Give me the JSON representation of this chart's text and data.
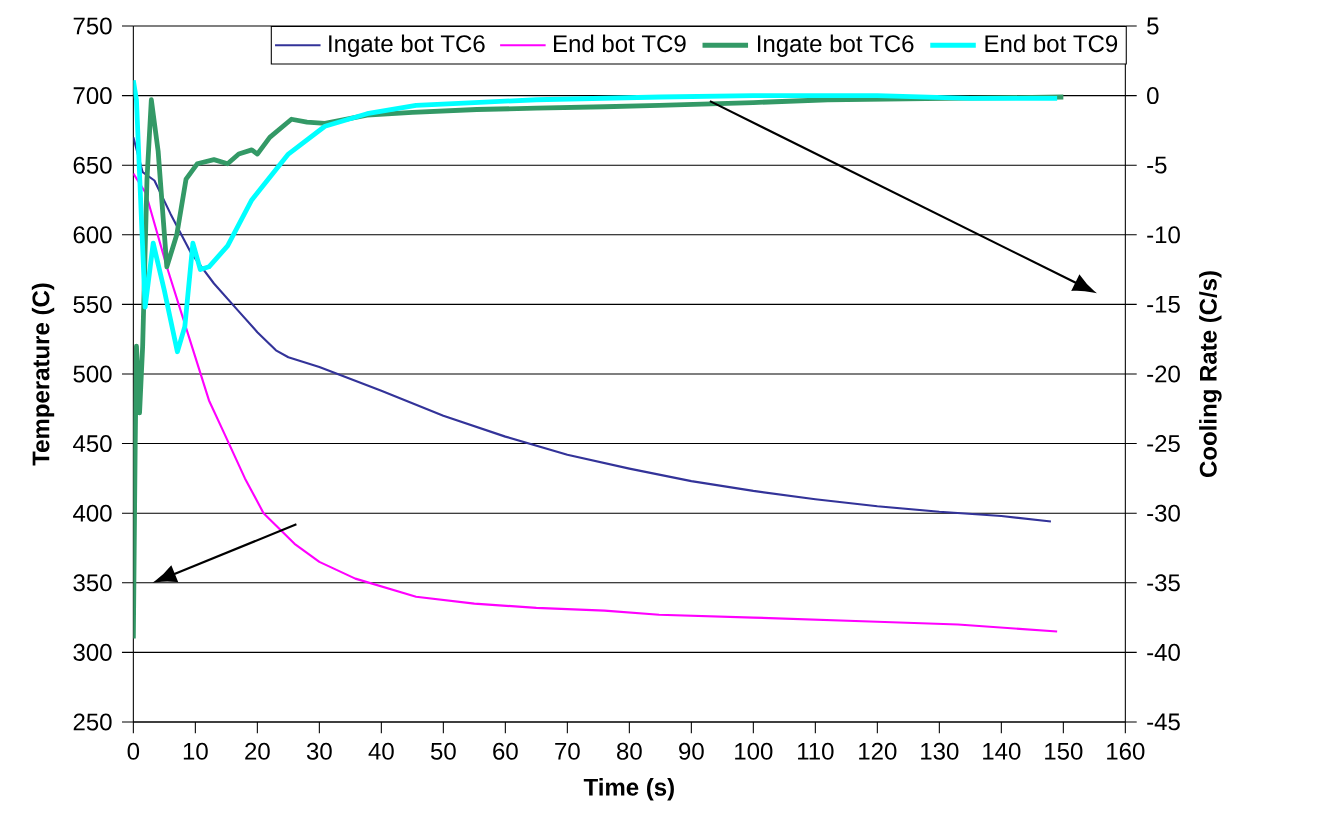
{
  "chart_data": {
    "type": "line",
    "xlabel": "Time (s)",
    "ylabel": "Temperature (C)",
    "y2label": "Cooling Rate (C/s)",
    "xlim": [
      0,
      160
    ],
    "xticks": [
      0,
      10,
      20,
      30,
      40,
      50,
      60,
      70,
      80,
      90,
      100,
      110,
      120,
      130,
      140,
      150,
      160
    ],
    "ylim": [
      250,
      750
    ],
    "yticks": [
      250,
      300,
      350,
      400,
      450,
      500,
      550,
      600,
      650,
      700,
      750
    ],
    "y2lim": [
      -45,
      5
    ],
    "y2ticks": [
      -45,
      -40,
      -35,
      -30,
      -25,
      -20,
      -15,
      -10,
      -5,
      0,
      5
    ],
    "grid": "y",
    "legend": "top",
    "series": [
      {
        "name": "Ingate bot TC6",
        "color": "#333399",
        "x": [
          0,
          1.5,
          3.4,
          6,
          9.3,
          13,
          17,
          20,
          23,
          25,
          30,
          40,
          50,
          60,
          70,
          80,
          90,
          100,
          110,
          120,
          130,
          140,
          148
        ],
        "values": [
          670,
          645,
          639,
          615,
          587,
          565,
          545,
          530,
          517,
          512,
          505,
          488,
          470,
          455,
          442,
          432,
          423,
          416,
          410,
          405,
          401,
          398,
          394
        ]
      },
      {
        "name": "End bot TC9",
        "color": "#ff00ff",
        "x": [
          0,
          2,
          5.4,
          8.8,
          12.2,
          14.7,
          18,
          21,
          26,
          30,
          35.8,
          45.6,
          55,
          65,
          76,
          84.8,
          100,
          120,
          133,
          149
        ],
        "values": [
          644,
          630,
          577,
          529,
          481,
          457,
          425,
          400,
          378,
          365,
          353,
          340,
          335,
          332,
          330,
          327,
          325,
          322,
          320,
          315
        ]
      },
      {
        "name": "Ingate bot TC6",
        "color": "#339966",
        "axis": "y2",
        "x": [
          0,
          0.3,
          0.5,
          1,
          1.5,
          2.2,
          2.9,
          4,
          5.4,
          7,
          8.5,
          10.3,
          13,
          15.2,
          17,
          19.1,
          20,
          22,
          25.5,
          28,
          30.9,
          37.7,
          45,
          55.4,
          65,
          76,
          84.8,
          100,
          112,
          131,
          150
        ],
        "values": [
          -39,
          -25,
          -18,
          -22.8,
          -18,
          -6,
          -0.3,
          -4,
          -12.3,
          -10,
          -6,
          -4.9,
          -4.6,
          -4.9,
          -4.2,
          -3.9,
          -4.2,
          -3,
          -1.7,
          -1.9,
          -2,
          -1.4,
          -1.2,
          -1,
          -0.9,
          -0.8,
          -0.7,
          -0.5,
          -0.3,
          -0.2,
          -0.1
        ]
      },
      {
        "name": "End bot TC9",
        "color": "#00ffff",
        "axis": "y2",
        "x": [
          0,
          0.5,
          1.9,
          3.2,
          5,
          7.1,
          8.3,
          9.6,
          10.8,
          12.2,
          15.2,
          19.1,
          25,
          30.9,
          37.7,
          45.6,
          55,
          65,
          85,
          100,
          120,
          135,
          149
        ],
        "values": [
          1.1,
          -0.3,
          -15.2,
          -10.6,
          -14,
          -18.4,
          -16.6,
          -10.6,
          -12.5,
          -12.3,
          -10.8,
          -7.5,
          -4.2,
          -2.2,
          -1.3,
          -0.7,
          -0.5,
          -0.3,
          -0.1,
          0,
          0,
          -0.2,
          -0.2
        ]
      }
    ]
  }
}
